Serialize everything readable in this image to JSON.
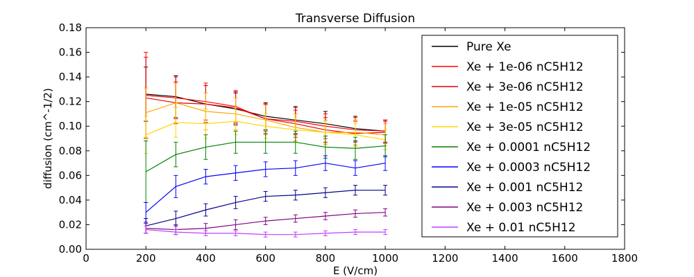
{
  "chart_data": {
    "type": "line",
    "title": "Transverse Diffusion",
    "xlabel": "E (V/cm)",
    "ylabel": "diffusion (cm^-1/2)",
    "xlim": [
      0,
      1800
    ],
    "ylim": [
      0,
      0.18
    ],
    "xticks": [
      "0",
      "200",
      "400",
      "600",
      "800",
      "1000",
      "1200",
      "1400",
      "1600",
      "1800"
    ],
    "yticks": [
      "0.00",
      "0.02",
      "0.04",
      "0.06",
      "0.08",
      "0.10",
      "0.12",
      "0.14",
      "0.16",
      "0.18"
    ],
    "grid": false,
    "legend_position": "top-right",
    "x": [
      200,
      300,
      400,
      500,
      600,
      700,
      800,
      900,
      1000
    ],
    "series": [
      {
        "name": "Pure Xe",
        "color": "#000000",
        "values": [
          0.126,
          0.124,
          0.118,
          0.114,
          0.108,
          0.105,
          0.102,
          0.098,
          0.096
        ],
        "errors": [
          0.022,
          0.017,
          0.015,
          0.013,
          0.011,
          0.011,
          0.01,
          0.01,
          0.009
        ]
      },
      {
        "name": "Xe + 1e-06 nC5H12",
        "color": "#ff0000",
        "values": [
          0.125,
          0.123,
          0.12,
          0.116,
          0.106,
          0.104,
          0.1,
          0.097,
          0.096
        ],
        "errors": [
          0.035,
          0.017,
          0.015,
          0.013,
          0.012,
          0.011,
          0.01,
          0.01,
          0.009
        ]
      },
      {
        "name": "Xe + 3e-06 nC5H12",
        "color": "#e00000",
        "values": [
          0.123,
          0.119,
          0.118,
          0.115,
          0.106,
          0.102,
          0.097,
          0.094,
          0.095
        ],
        "errors": [
          0.033,
          0.017,
          0.015,
          0.013,
          0.012,
          0.011,
          0.01,
          0.01,
          0.009
        ]
      },
      {
        "name": "Xe + 1e-05 nC5H12",
        "color": "#ffa500",
        "values": [
          0.111,
          0.119,
          0.112,
          0.11,
          0.105,
          0.099,
          0.095,
          0.095,
          0.093
        ],
        "errors": [
          0.02,
          0.016,
          0.015,
          0.013,
          0.012,
          0.011,
          0.01,
          0.01,
          0.009
        ]
      },
      {
        "name": "Xe + 3e-05 nC5H12",
        "color": "#ffd700",
        "values": [
          0.093,
          0.103,
          0.102,
          0.104,
          0.1,
          0.097,
          0.095,
          0.093,
          0.089
        ],
        "errors": [
          0.015,
          0.012,
          0.012,
          0.011,
          0.01,
          0.01,
          0.009,
          0.009,
          0.008
        ]
      },
      {
        "name": "Xe + 0.0001 nC5H12",
        "color": "#008000",
        "values": [
          0.063,
          0.077,
          0.083,
          0.087,
          0.087,
          0.087,
          0.083,
          0.082,
          0.084
        ],
        "errors": [
          0.025,
          0.01,
          0.01,
          0.009,
          0.009,
          0.009,
          0.009,
          0.009,
          0.009
        ]
      },
      {
        "name": "Xe + 0.0003 nC5H12",
        "color": "#0000ff",
        "values": [
          0.03,
          0.051,
          0.059,
          0.062,
          0.065,
          0.066,
          0.07,
          0.066,
          0.07
        ],
        "errors": [
          0.008,
          0.009,
          0.006,
          0.006,
          0.006,
          0.006,
          0.006,
          0.006,
          0.006
        ]
      },
      {
        "name": "Xe + 0.001 nC5H12",
        "color": "#00008b",
        "values": [
          0.019,
          0.025,
          0.032,
          0.038,
          0.043,
          0.044,
          0.046,
          0.048,
          0.048
        ],
        "errors": [
          0.006,
          0.006,
          0.005,
          0.005,
          0.004,
          0.004,
          0.004,
          0.004,
          0.004
        ]
      },
      {
        "name": "Xe + 0.003 nC5H12",
        "color": "#800080",
        "values": [
          0.017,
          0.016,
          0.017,
          0.02,
          0.023,
          0.025,
          0.027,
          0.029,
          0.03
        ],
        "errors": [
          0.004,
          0.004,
          0.004,
          0.004,
          0.003,
          0.003,
          0.003,
          0.003,
          0.003
        ]
      },
      {
        "name": "Xe + 0.01 nC5H12",
        "color": "#bf3fff",
        "values": [
          0.016,
          0.014,
          0.013,
          0.013,
          0.012,
          0.012,
          0.013,
          0.014,
          0.014
        ],
        "errors": [
          0.003,
          0.002,
          0.002,
          0.002,
          0.002,
          0.002,
          0.002,
          0.002,
          0.002
        ]
      }
    ]
  }
}
